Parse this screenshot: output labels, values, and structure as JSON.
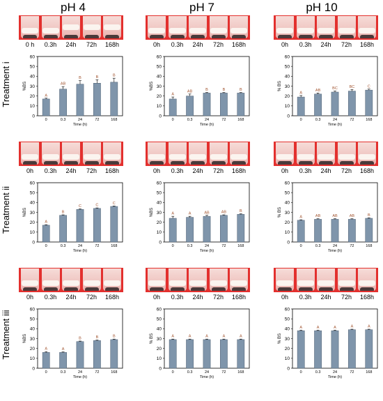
{
  "columns": [
    "pH 4",
    "pH 7",
    "pH 10"
  ],
  "rows": [
    "Treatment i",
    "Treatment ii",
    "Treatment iii"
  ],
  "colors": {
    "bar": "#7f95ab",
    "bar_edge": "#4e5f72",
    "strip": "#e3302e",
    "grade_letter": "#a0522d"
  },
  "panels": [
    {
      "row": 0,
      "col": 0,
      "time_labels": [
        "0 h",
        "0.3h",
        "24h",
        "72h",
        "168h"
      ]
    },
    {
      "row": 0,
      "col": 1,
      "time_labels": [
        "0h",
        "0.3h",
        "24h",
        "72h",
        "168h"
      ]
    },
    {
      "row": 0,
      "col": 2,
      "time_labels": [
        "0h",
        "0.3h",
        "24h",
        "72h",
        "168h"
      ]
    },
    {
      "row": 1,
      "col": 0,
      "time_labels": [
        "0h",
        "0.3h",
        "24h",
        "72h",
        "168h"
      ]
    },
    {
      "row": 1,
      "col": 1,
      "time_labels": [
        "0h",
        "0.3h",
        "24h",
        "72h",
        "168h"
      ]
    },
    {
      "row": 1,
      "col": 2,
      "time_labels": [
        "0h",
        "0.3h",
        "24h",
        "72h",
        "168h"
      ]
    },
    {
      "row": 2,
      "col": 0,
      "time_labels": [
        "0h",
        "0.3h",
        "24h",
        "72h",
        "168h"
      ]
    },
    {
      "row": 2,
      "col": 1,
      "time_labels": [
        "0h",
        "0.3h",
        "24h",
        "72h",
        "168h"
      ]
    },
    {
      "row": 2,
      "col": 2,
      "time_labels": [
        "0h",
        "0.3h",
        "24h",
        "72h",
        "168h"
      ]
    }
  ],
  "chart_data": [
    {
      "type": "bar",
      "panel": "Treatment i, pH 4",
      "categories": [
        "0",
        "0.3",
        "24",
        "72",
        "168"
      ],
      "values": [
        17,
        27,
        32,
        33,
        34
      ],
      "errors": [
        0.8,
        2.5,
        3.5,
        3.5,
        4
      ],
      "letters": [
        "A",
        "AB",
        "B",
        "B",
        "B"
      ],
      "ylabel": "%BS",
      "xlabel": "Time (h)",
      "ylim": [
        0,
        60
      ],
      "yticks": [
        0,
        10,
        20,
        30,
        40,
        50,
        60
      ]
    },
    {
      "type": "bar",
      "panel": "Treatment i, pH 7",
      "categories": [
        "0",
        "0.3",
        "24",
        "72",
        "168"
      ],
      "values": [
        17,
        20,
        23,
        23,
        23
      ],
      "errors": [
        2,
        2,
        0.5,
        0.5,
        0.5
      ],
      "letters": [
        "A",
        "AB",
        "B",
        "B",
        "B"
      ],
      "ylabel": "%BS",
      "xlabel": "Time (h)",
      "ylim": [
        0,
        60
      ],
      "yticks": [
        0,
        10,
        20,
        30,
        40,
        50,
        60
      ]
    },
    {
      "type": "bar",
      "panel": "Treatment i, pH 10",
      "categories": [
        "0",
        "0.3",
        "24",
        "72",
        "168"
      ],
      "values": [
        19,
        22,
        24,
        25,
        26
      ],
      "errors": [
        1.5,
        1,
        1,
        1.5,
        1
      ],
      "letters": [
        "A",
        "AB",
        "BC",
        "BC",
        "C"
      ],
      "ylabel": "% BS",
      "xlabel": "Time (h)",
      "ylim": [
        0,
        60
      ],
      "yticks": [
        0,
        10,
        20,
        30,
        40,
        50,
        60
      ]
    },
    {
      "type": "bar",
      "panel": "Treatment ii, pH 4",
      "categories": [
        "0",
        "0.3",
        "24",
        "72",
        "168"
      ],
      "values": [
        17,
        27,
        33,
        34,
        36
      ],
      "errors": [
        0.5,
        0.5,
        0.5,
        0.5,
        0.5
      ],
      "letters": [
        "A",
        "B",
        "C",
        "C",
        "C"
      ],
      "ylabel": "%BS",
      "xlabel": "Time (h)",
      "ylim": [
        0,
        60
      ],
      "yticks": [
        0,
        10,
        20,
        30,
        40,
        50,
        60
      ]
    },
    {
      "type": "bar",
      "panel": "Treatment ii, pH 7",
      "categories": [
        "0",
        "0.3",
        "24",
        "72",
        "168"
      ],
      "values": [
        24,
        25,
        26,
        27,
        28
      ],
      "errors": [
        2,
        1,
        1,
        0.5,
        0.5
      ],
      "letters": [
        "A",
        "A",
        "AB",
        "AB",
        "B"
      ],
      "ylabel": "%BS",
      "xlabel": "Time (h)",
      "ylim": [
        0,
        60
      ],
      "yticks": [
        0,
        10,
        20,
        30,
        40,
        50,
        60
      ]
    },
    {
      "type": "bar",
      "panel": "Treatment ii, pH 10",
      "categories": [
        "0",
        "0.3",
        "24",
        "72",
        "168"
      ],
      "values": [
        22,
        23,
        23,
        23,
        24
      ],
      "errors": [
        0.5,
        0.5,
        0.5,
        0.5,
        0.5
      ],
      "letters": [
        "A",
        "AB",
        "AB",
        "AB",
        "B"
      ],
      "ylabel": "% BS",
      "xlabel": "Time (h)",
      "ylim": [
        0,
        60
      ],
      "yticks": [
        0,
        10,
        20,
        30,
        40,
        50,
        60
      ]
    },
    {
      "type": "bar",
      "panel": "Treatment iii, pH 4",
      "categories": [
        "0",
        "0.3",
        "24",
        "72",
        "168"
      ],
      "values": [
        16,
        16,
        27,
        28,
        29
      ],
      "errors": [
        0.8,
        0.5,
        0.5,
        0.5,
        0.5
      ],
      "letters": [
        "A",
        "A",
        "B",
        "B",
        "B"
      ],
      "ylabel": "%BS",
      "xlabel": "Time (h)",
      "ylim": [
        0,
        60
      ],
      "yticks": [
        0,
        10,
        20,
        30,
        40,
        50,
        60
      ]
    },
    {
      "type": "bar",
      "panel": "Treatment iii, pH 7",
      "categories": [
        "0",
        "0.3",
        "24",
        "72",
        "168"
      ],
      "values": [
        29,
        29,
        29,
        29,
        29
      ],
      "errors": [
        0.5,
        0.5,
        0.5,
        0.5,
        0.5
      ],
      "letters": [
        "A",
        "A",
        "A",
        "A",
        "A"
      ],
      "ylabel": "% BS",
      "xlabel": "Time (h)",
      "ylim": [
        0,
        60
      ],
      "yticks": [
        0,
        10,
        20,
        30,
        40,
        50,
        60
      ]
    },
    {
      "type": "bar",
      "panel": "Treatment iii, pH 10",
      "categories": [
        "0",
        "0.3",
        "24",
        "72",
        "168"
      ],
      "values": [
        38,
        38,
        38,
        39,
        39
      ],
      "errors": [
        0.5,
        0.5,
        0.5,
        0.5,
        0.5
      ],
      "letters": [
        "A",
        "A",
        "A",
        "A",
        "A"
      ],
      "ylabel": "% BS",
      "xlabel": "Time (h)",
      "ylim": [
        0,
        60
      ],
      "yticks": [
        0,
        10,
        20,
        30,
        40,
        50,
        60
      ]
    }
  ]
}
